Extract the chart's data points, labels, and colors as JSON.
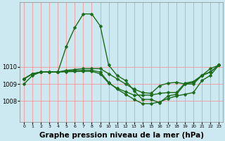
{
  "background_color": "#cce8f0",
  "grid_color_h": "#ff8888",
  "grid_color_v": "#cc9999",
  "line_color": "#1a6b1a",
  "marker": "D",
  "marker_size": 2.5,
  "linewidth": 1.0,
  "xlabel": "Graphe pression niveau de la mer (hPa)",
  "xlabel_fontsize": 7.5,
  "xlim": [
    -0.5,
    23.5
  ],
  "ylim": [
    1006.8,
    1013.8
  ],
  "yticks": [
    1008,
    1009,
    1010
  ],
  "xticks": [
    0,
    1,
    2,
    3,
    4,
    5,
    6,
    7,
    8,
    9,
    10,
    11,
    12,
    13,
    14,
    15,
    16,
    17,
    18,
    19,
    20,
    21,
    22,
    23
  ],
  "series": [
    {
      "x": [
        0,
        1,
        2,
        3,
        4,
        5,
        6,
        7,
        8,
        9,
        10,
        11,
        12,
        13,
        14,
        15,
        16,
        17,
        18,
        19,
        20,
        21,
        22,
        23
      ],
      "y": [
        1009.0,
        1009.5,
        1009.7,
        1009.7,
        1009.7,
        1011.2,
        1012.3,
        1013.1,
        1013.1,
        1012.4,
        1010.1,
        1009.5,
        1009.2,
        1008.6,
        1008.1,
        1008.1,
        1007.9,
        1008.3,
        1008.4,
        1009.0,
        1009.1,
        1009.5,
        1009.9,
        1010.1
      ]
    },
    {
      "x": [
        0,
        1,
        2,
        3,
        4,
        5,
        6,
        7,
        8,
        9,
        10,
        11,
        12,
        13,
        14,
        15,
        16,
        17,
        18,
        19,
        20,
        21,
        22,
        23
      ],
      "y": [
        1009.3,
        1009.6,
        1009.7,
        1009.7,
        1009.7,
        1009.8,
        1009.85,
        1009.9,
        1009.9,
        1009.9,
        1009.6,
        1009.3,
        1009.0,
        1008.7,
        1008.5,
        1008.45,
        1008.9,
        1009.05,
        1009.1,
        1009.0,
        1009.0,
        1009.5,
        1009.7,
        1010.1
      ]
    },
    {
      "x": [
        0,
        1,
        2,
        3,
        4,
        5,
        6,
        7,
        8,
        9,
        10,
        11,
        12,
        13,
        14,
        15,
        16,
        17,
        18,
        19,
        20,
        21,
        22,
        23
      ],
      "y": [
        1009.3,
        1009.6,
        1009.7,
        1009.7,
        1009.7,
        1009.75,
        1009.78,
        1009.8,
        1009.8,
        1009.7,
        1009.1,
        1008.7,
        1008.4,
        1008.1,
        1007.85,
        1007.85,
        1007.95,
        1008.15,
        1008.3,
        1008.4,
        1008.5,
        1009.2,
        1009.5,
        1010.1
      ]
    },
    {
      "x": [
        0,
        1,
        2,
        3,
        4,
        5,
        6,
        7,
        8,
        9,
        10,
        11,
        12,
        13,
        14,
        15,
        16,
        17,
        18,
        19,
        20,
        21,
        22,
        23
      ],
      "y": [
        1009.3,
        1009.6,
        1009.7,
        1009.7,
        1009.7,
        1009.72,
        1009.73,
        1009.74,
        1009.74,
        1009.6,
        1009.05,
        1008.75,
        1008.55,
        1008.35,
        1008.35,
        1008.35,
        1008.45,
        1008.5,
        1008.5,
        1009.05,
        1009.15,
        1009.5,
        1009.7,
        1010.1
      ]
    }
  ]
}
